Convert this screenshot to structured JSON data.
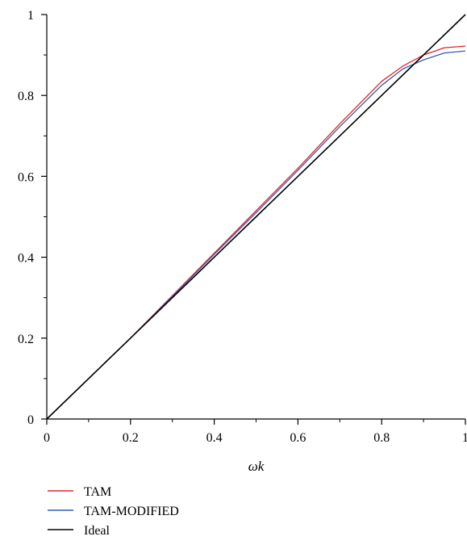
{
  "chart_data": {
    "type": "line",
    "title": "",
    "xlabel": "ωk",
    "ylabel": "",
    "xlim": [
      0,
      1
    ],
    "ylim": [
      0,
      1
    ],
    "grid": false,
    "legend_position": "bottom-left",
    "x_ticks": [
      "0",
      "0.2",
      "0.4",
      "0.6",
      "0.8",
      "1"
    ],
    "y_ticks": [
      "0",
      "0.2",
      "0.4",
      "0.6",
      "0.8",
      "1"
    ],
    "x_tick_values": [
      0,
      0.2,
      0.4,
      0.6,
      0.8,
      1
    ],
    "y_tick_values": [
      0,
      0.2,
      0.4,
      0.6,
      0.8,
      1
    ],
    "series": [
      {
        "name": "TAM",
        "color": "#e8212b",
        "x": [
          0,
          0.05,
          0.1,
          0.2,
          0.3,
          0.4,
          0.5,
          0.6,
          0.7,
          0.8,
          0.85,
          0.9,
          0.95,
          1.0
        ],
        "y": [
          0,
          0.05,
          0.1,
          0.2,
          0.305,
          0.41,
          0.515,
          0.62,
          0.73,
          0.835,
          0.872,
          0.9,
          0.918,
          0.922
        ]
      },
      {
        "name": "TAM-MODIFIED",
        "color": "#2f5fb0",
        "x": [
          0,
          0.05,
          0.1,
          0.2,
          0.3,
          0.4,
          0.5,
          0.6,
          0.7,
          0.8,
          0.85,
          0.9,
          0.95,
          1.0
        ],
        "y": [
          0,
          0.05,
          0.1,
          0.2,
          0.303,
          0.407,
          0.51,
          0.615,
          0.723,
          0.825,
          0.865,
          0.888,
          0.905,
          0.91
        ]
      },
      {
        "name": "Ideal",
        "color": "#000000",
        "x": [
          0,
          0.05,
          0.1,
          0.2,
          0.3,
          0.4,
          0.5,
          0.6,
          0.7,
          0.8,
          0.9,
          1.0
        ],
        "y": [
          0,
          0.05,
          0.1,
          0.2,
          0.3,
          0.4,
          0.5,
          0.6,
          0.7,
          0.8,
          0.9,
          1.0
        ]
      }
    ]
  }
}
